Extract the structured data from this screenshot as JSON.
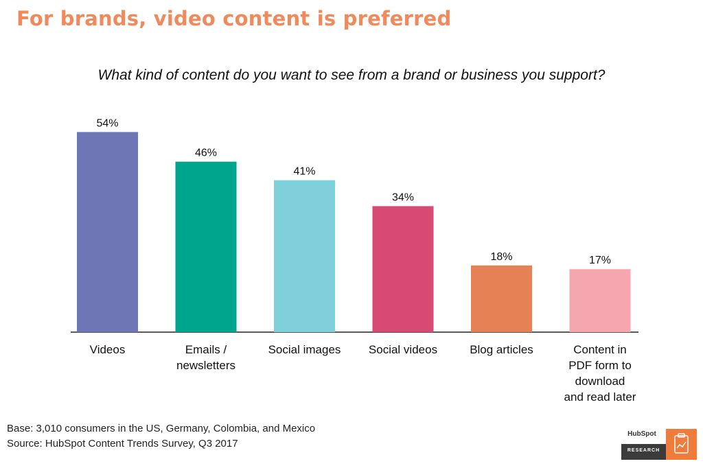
{
  "headline": "For brands, video content is preferred",
  "chart_data": {
    "type": "bar",
    "title": "What kind of content do you want to see from a brand or business you support?",
    "xlabel": "",
    "ylabel": "",
    "ylim": [
      0,
      60
    ],
    "grid": false,
    "categories": [
      [
        "Videos"
      ],
      [
        "Emails /",
        "newsletters"
      ],
      [
        "Social images"
      ],
      [
        "Social videos"
      ],
      [
        "Blog articles"
      ],
      [
        "Content in",
        "PDF form to",
        "download",
        "and read later"
      ]
    ],
    "values": [
      54,
      46,
      41,
      34,
      18,
      17
    ],
    "value_labels": [
      "54%",
      "46%",
      "41%",
      "34%",
      "18%",
      "17%"
    ],
    "colors": [
      "#6e76b6",
      "#00a58e",
      "#80d0dc",
      "#d64a73",
      "#e58154",
      "#f5a6ae"
    ]
  },
  "footer": {
    "base": "Base: 3,010 consumers in the US, Germany, Colombia, and Mexico",
    "source": "Source: HubSpot Content Trends Survey, Q3 2017"
  },
  "logo": {
    "brand": "HubSpot",
    "label": "RESEARCH",
    "icon": "clipboard-chart-icon"
  }
}
